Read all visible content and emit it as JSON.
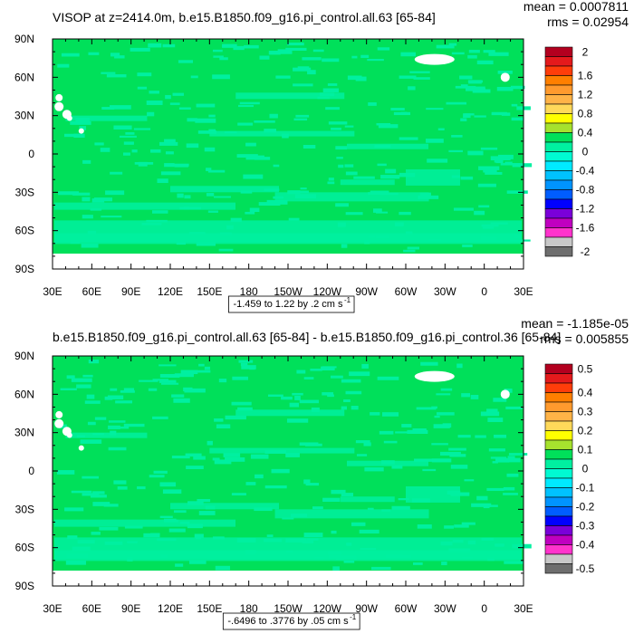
{
  "chart_data": [
    {
      "type": "heatmap",
      "title": "VISOP at z=2414.0m, b.e15.B1850.f09_g16.pi_control.all.63 [65-84]",
      "stats": {
        "mean": "mean = 0.0007811",
        "rms": "rms = 0.02954"
      },
      "x_ticks": [
        "30E",
        "60E",
        "90E",
        "120E",
        "150E",
        "180",
        "150W",
        "120W",
        "90W",
        "60W",
        "30W",
        "0",
        "30E"
      ],
      "y_ticks": [
        "90N",
        "60N",
        "30N",
        "0",
        "30S",
        "60S",
        "90S"
      ],
      "xlim": [
        30,
        390
      ],
      "ylim": [
        -90,
        90
      ],
      "colorbar": {
        "labels": [
          "2",
          "1.6",
          "1.2",
          "0.8",
          "0.4",
          "0",
          "-0.4",
          "-0.8",
          "-1.2",
          "-1.6",
          "-2"
        ],
        "colors": [
          "#b3001f",
          "#e41a1c",
          "#ff3d0a",
          "#ff7f00",
          "#ff9a2e",
          "#ffb347",
          "#ffd95a",
          "#ffff00",
          "#a6e22e",
          "#00e05a",
          "#00f0a0",
          "#00fad2",
          "#00eaff",
          "#00c2ff",
          "#0094ff",
          "#005dff",
          "#0000ff",
          "#7a00d9",
          "#c000c0",
          "#ff33cc",
          "#c8c8c8",
          "#6e6e6e"
        ]
      },
      "range_text": "-1.459 to 1.22 by .2 cm s",
      "range_sup": "-1"
    },
    {
      "type": "heatmap",
      "title": "b.e15.B1850.f09_g16.pi_control.all.63 [65-84] - b.e15.B1850.f09_g16.pi_control.36 [65-84]",
      "stats": {
        "mean": "mean = -1.185e-05",
        "rms": "rms = 0.005855"
      },
      "x_ticks": [
        "30E",
        "60E",
        "90E",
        "120E",
        "150E",
        "180",
        "150W",
        "120W",
        "90W",
        "60W",
        "30W",
        "0",
        "30E"
      ],
      "y_ticks": [
        "90N",
        "60N",
        "30N",
        "0",
        "30S",
        "60S",
        "90S"
      ],
      "xlim": [
        30,
        390
      ],
      "ylim": [
        -90,
        90
      ],
      "colorbar": {
        "labels": [
          "0.5",
          "0.4",
          "0.3",
          "0.2",
          "0.1",
          "0",
          "-0.1",
          "-0.2",
          "-0.3",
          "-0.4",
          "-0.5"
        ],
        "colors": [
          "#b3001f",
          "#e41a1c",
          "#ff3d0a",
          "#ff7f00",
          "#ff9a2e",
          "#ffb347",
          "#ffd95a",
          "#ffff00",
          "#a6e22e",
          "#00e05a",
          "#00f0a0",
          "#00fad2",
          "#00eaff",
          "#00c2ff",
          "#0094ff",
          "#005dff",
          "#0000ff",
          "#7a00d9",
          "#c000c0",
          "#ff33cc",
          "#c8c8c8",
          "#6e6e6e"
        ]
      },
      "range_text": "-.6496 to .3776 by .05 cm s",
      "range_sup": "-1"
    }
  ]
}
